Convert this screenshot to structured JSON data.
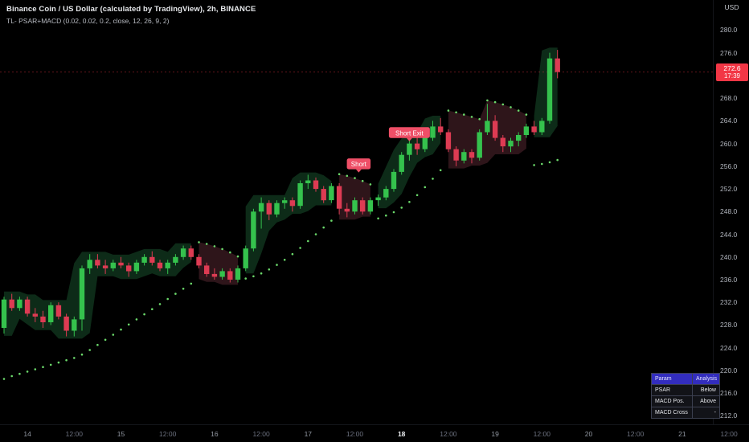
{
  "header": {
    "title": "Binance Coin / US Dollar (calculated by TradingView), 2h, BINANCE",
    "indicator": "TL- PSAR+MACD (0.02, 0.02, 0.2, close, 12, 26, 9, 2)"
  },
  "price_axis": {
    "currency": "USD",
    "last_price": "272.6",
    "countdown": "17:39",
    "ticks": [
      280.0,
      276.0,
      268.0,
      264.0,
      260.0,
      256.0,
      252.0,
      248.0,
      244.0,
      240.0,
      236.0,
      232.0,
      228.0,
      224.0,
      220.0,
      216.0,
      212.0
    ]
  },
  "time_axis": {
    "labels": [
      {
        "i": 3,
        "text": "14",
        "kind": "day"
      },
      {
        "i": 9,
        "text": "12:00",
        "kind": "time"
      },
      {
        "i": 15,
        "text": "15",
        "kind": "day"
      },
      {
        "i": 21,
        "text": "12:00",
        "kind": "time"
      },
      {
        "i": 27,
        "text": "16",
        "kind": "day"
      },
      {
        "i": 33,
        "text": "12:00",
        "kind": "time"
      },
      {
        "i": 39,
        "text": "17",
        "kind": "day"
      },
      {
        "i": 45,
        "text": "12:00",
        "kind": "time"
      },
      {
        "i": 51,
        "text": "18",
        "kind": "current"
      },
      {
        "i": 57,
        "text": "12:00",
        "kind": "time"
      },
      {
        "i": 63,
        "text": "19",
        "kind": "day"
      },
      {
        "i": 69,
        "text": "12:00",
        "kind": "time"
      },
      {
        "i": 75,
        "text": "20",
        "kind": "day"
      },
      {
        "i": 81,
        "text": "12:00",
        "kind": "time"
      },
      {
        "i": 87,
        "text": "21",
        "kind": "day"
      },
      {
        "i": 93,
        "text": "12:00",
        "kind": "time"
      }
    ]
  },
  "chart_data": {
    "type": "candlestick",
    "symbol": "BNBUSD",
    "interval": "2h",
    "price_min": 210.5,
    "price_max": 285.3,
    "last_close": 272.6,
    "colors": {
      "up": "#35c24d",
      "down": "#dd3b53",
      "psar": "#6bd96b",
      "band_up": "#0d2b18",
      "band_down": "#2e151a",
      "marker": "#ef4f67",
      "price_badge": "#f23645"
    },
    "candle_columns": [
      "open",
      "high",
      "low",
      "close"
    ],
    "candles": [
      [
        227.5,
        233.0,
        226.5,
        232.5
      ],
      [
        232.5,
        233.5,
        230.5,
        231.0
      ],
      [
        231.0,
        233.0,
        230.5,
        232.5
      ],
      [
        232.5,
        233.0,
        229.5,
        230.0
      ],
      [
        230.0,
        231.0,
        228.5,
        229.5
      ],
      [
        229.5,
        230.5,
        227.5,
        228.5
      ],
      [
        228.5,
        232.0,
        228.0,
        231.5
      ],
      [
        231.5,
        232.0,
        229.0,
        229.5
      ],
      [
        229.5,
        230.0,
        226.0,
        227.0
      ],
      [
        227.0,
        229.5,
        226.0,
        229.0
      ],
      [
        229.0,
        238.5,
        227.0,
        238.0
      ],
      [
        238.0,
        240.5,
        237.0,
        239.5
      ],
      [
        239.5,
        240.5,
        238.0,
        238.5
      ],
      [
        238.5,
        239.5,
        237.0,
        238.0
      ],
      [
        238.0,
        239.5,
        237.5,
        239.0
      ],
      [
        239.0,
        240.0,
        238.0,
        238.5
      ],
      [
        238.5,
        239.0,
        236.5,
        237.5
      ],
      [
        237.5,
        239.5,
        237.0,
        239.0
      ],
      [
        239.0,
        240.5,
        238.5,
        240.0
      ],
      [
        240.0,
        241.0,
        238.5,
        239.0
      ],
      [
        239.0,
        239.5,
        237.5,
        238.0
      ],
      [
        238.0,
        239.5,
        237.0,
        239.0
      ],
      [
        239.0,
        240.5,
        238.5,
        240.0
      ],
      [
        240.0,
        242.0,
        239.5,
        241.5
      ],
      [
        241.5,
        242.0,
        239.5,
        240.0
      ],
      [
        240.0,
        240.5,
        238.0,
        238.5
      ],
      [
        238.5,
        239.0,
        236.5,
        237.0
      ],
      [
        237.0,
        238.0,
        236.0,
        236.5
      ],
      [
        236.5,
        238.0,
        236.0,
        237.5
      ],
      [
        237.5,
        238.0,
        235.5,
        236.0
      ],
      [
        236.0,
        238.5,
        235.5,
        238.0
      ],
      [
        238.0,
        242.0,
        237.5,
        241.5
      ],
      [
        241.5,
        248.5,
        241.0,
        248.0
      ],
      [
        248.0,
        250.5,
        245.0,
        249.5
      ],
      [
        249.5,
        250.0,
        246.5,
        247.5
      ],
      [
        247.5,
        250.0,
        247.0,
        249.5
      ],
      [
        249.5,
        250.5,
        248.5,
        250.0
      ],
      [
        250.0,
        250.5,
        248.0,
        249.0
      ],
      [
        249.0,
        253.5,
        248.5,
        253.0
      ],
      [
        253.0,
        254.5,
        252.0,
        253.5
      ],
      [
        253.5,
        254.0,
        251.5,
        252.0
      ],
      [
        252.0,
        252.5,
        249.5,
        250.0
      ],
      [
        250.0,
        253.0,
        249.5,
        252.5
      ],
      [
        252.5,
        253.0,
        247.5,
        248.5
      ],
      [
        248.5,
        249.5,
        247.0,
        248.0
      ],
      [
        248.0,
        250.5,
        247.5,
        250.0
      ],
      [
        250.0,
        250.5,
        247.5,
        248.0
      ],
      [
        248.0,
        250.5,
        247.5,
        250.0
      ],
      [
        250.0,
        251.0,
        249.0,
        250.5
      ],
      [
        250.5,
        252.5,
        250.0,
        252.0
      ],
      [
        252.0,
        255.5,
        251.5,
        255.0
      ],
      [
        255.0,
        258.5,
        254.5,
        258.0
      ],
      [
        258.0,
        260.5,
        257.0,
        260.0
      ],
      [
        260.0,
        261.0,
        258.0,
        259.0
      ],
      [
        259.0,
        261.5,
        258.5,
        261.0
      ],
      [
        261.0,
        264.0,
        260.5,
        263.0
      ],
      [
        263.0,
        264.5,
        261.5,
        262.0
      ],
      [
        262.0,
        262.5,
        258.5,
        259.0
      ],
      [
        259.0,
        259.5,
        256.0,
        257.0
      ],
      [
        257.0,
        259.0,
        256.5,
        258.5
      ],
      [
        258.5,
        259.0,
        256.5,
        257.5
      ],
      [
        257.5,
        262.5,
        257.0,
        262.0
      ],
      [
        262.0,
        267.0,
        261.5,
        264.0
      ],
      [
        264.0,
        265.0,
        260.5,
        261.0
      ],
      [
        261.0,
        261.5,
        258.5,
        259.5
      ],
      [
        259.5,
        261.0,
        258.5,
        260.5
      ],
      [
        260.5,
        262.0,
        259.5,
        261.5
      ],
      [
        261.5,
        263.5,
        261.0,
        263.0
      ],
      [
        263.0,
        264.0,
        261.5,
        262.0
      ],
      [
        262.0,
        264.5,
        261.5,
        264.0
      ],
      [
        264.0,
        276.0,
        263.5,
        275.0
      ],
      [
        275.0,
        276.5,
        271.5,
        272.6
      ]
    ],
    "psar": [
      218.5,
      219.0,
      219.4,
      219.8,
      220.2,
      220.6,
      221.0,
      221.4,
      221.8,
      222.2,
      222.8,
      223.6,
      224.5,
      225.4,
      226.3,
      227.2,
      228.1,
      229.0,
      229.9,
      230.8,
      231.7,
      232.6,
      233.5,
      234.4,
      235.3,
      242.6,
      242.3,
      241.9,
      241.4,
      240.8,
      240.1,
      236.2,
      236.6,
      237.1,
      237.8,
      238.6,
      239.5,
      240.5,
      241.6,
      242.8,
      244.0,
      245.2,
      246.4,
      254.6,
      254.3,
      253.9,
      253.4,
      252.8,
      246.8,
      247.3,
      247.9,
      248.7,
      249.7,
      250.9,
      252.3,
      253.8,
      255.3,
      265.8,
      265.5,
      265.1,
      264.7,
      264.3,
      267.6,
      267.3,
      266.9,
      266.4,
      265.8,
      265.1,
      256.2,
      256.4,
      256.7,
      257.1
    ],
    "segments": [
      {
        "start": 0,
        "end": 24,
        "dir": "up"
      },
      {
        "start": 25,
        "end": 30,
        "dir": "down"
      },
      {
        "start": 31,
        "end": 42,
        "dir": "up"
      },
      {
        "start": 43,
        "end": 47,
        "dir": "down"
      },
      {
        "start": 48,
        "end": 56,
        "dir": "up"
      },
      {
        "start": 57,
        "end": 67,
        "dir": "down"
      },
      {
        "start": 68,
        "end": 71,
        "dir": "up"
      }
    ],
    "markers": [
      {
        "index": 45.5,
        "price": 254.9,
        "label": "Short"
      },
      {
        "index": 52,
        "price": 260.4,
        "label": "Short Exit"
      }
    ]
  },
  "analysis_table": {
    "header": [
      "Param",
      "Analysis"
    ],
    "rows": [
      [
        "PSAR",
        "Below"
      ],
      [
        "MACD Pos.",
        "Above"
      ],
      [
        "MACD Cross",
        "-"
      ]
    ]
  }
}
